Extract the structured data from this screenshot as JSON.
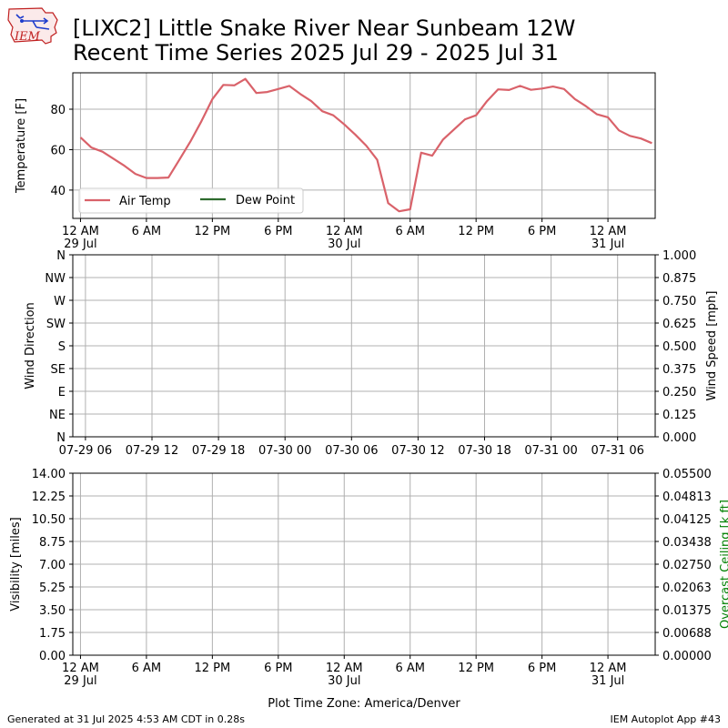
{
  "title_line1": "[LIXC2] Little Snake River Near Sunbeam 12W",
  "title_line2": "Recent Time Series 2025 Jul 29 - 2025 Jul 31",
  "logo_text": "IEM",
  "footer_left": "Generated at 31 Jul 2025 4:53 AM CDT in 0.28s",
  "footer_right": "IEM Autoplot App #43",
  "colors": {
    "air_temp": "#d9626a",
    "dew_point": "#2e6b2e",
    "grid": "#b0b0b0",
    "ceiling_label": "#008000"
  },
  "chart_data": [
    {
      "type": "line",
      "ylabel": "Temperature [F]",
      "xlim": [
        "2025-07-29 00:00",
        "2025-07-31 03:00"
      ],
      "ylim": [
        26,
        98
      ],
      "yticks": [
        40,
        60,
        80
      ],
      "xticks": [
        {
          "t": "2025-07-29 00:00",
          "label": "12 AM",
          "sub": "29 Jul"
        },
        {
          "t": "2025-07-29 06:00",
          "label": "6 AM",
          "sub": ""
        },
        {
          "t": "2025-07-29 12:00",
          "label": "12 PM",
          "sub": ""
        },
        {
          "t": "2025-07-29 18:00",
          "label": "6 PM",
          "sub": ""
        },
        {
          "t": "2025-07-30 00:00",
          "label": "12 AM",
          "sub": "30 Jul"
        },
        {
          "t": "2025-07-30 06:00",
          "label": "6 AM",
          "sub": ""
        },
        {
          "t": "2025-07-30 12:00",
          "label": "12 PM",
          "sub": ""
        },
        {
          "t": "2025-07-30 18:00",
          "label": "6 PM",
          "sub": ""
        },
        {
          "t": "2025-07-31 00:00",
          "label": "12 AM",
          "sub": "31 Jul"
        }
      ],
      "legend": [
        "Air Temp",
        "Dew Point"
      ],
      "legend_position": "lower-left",
      "grid": true,
      "series": [
        {
          "name": "Air Temp",
          "color": "#d9626a",
          "points": [
            [
              "2025-07-29 00:00",
              66
            ],
            [
              "2025-07-29 01:00",
              61
            ],
            [
              "2025-07-29 02:00",
              59
            ],
            [
              "2025-07-29 03:00",
              55.5
            ],
            [
              "2025-07-29 04:00",
              52
            ],
            [
              "2025-07-29 05:00",
              48
            ],
            [
              "2025-07-29 06:00",
              46
            ],
            [
              "2025-07-29 07:00",
              46
            ],
            [
              "2025-07-29 08:00",
              46.2
            ],
            [
              "2025-07-29 09:00",
              55
            ],
            [
              "2025-07-29 10:00",
              64
            ],
            [
              "2025-07-29 11:00",
              74
            ],
            [
              "2025-07-29 12:00",
              85
            ],
            [
              "2025-07-29 13:00",
              92
            ],
            [
              "2025-07-29 14:00",
              91.8
            ],
            [
              "2025-07-29 15:00",
              95
            ],
            [
              "2025-07-29 16:00",
              88
            ],
            [
              "2025-07-29 17:00",
              88.5
            ],
            [
              "2025-07-29 18:00",
              90
            ],
            [
              "2025-07-29 19:00",
              91.5
            ],
            [
              "2025-07-29 20:00",
              87.5
            ],
            [
              "2025-07-29 21:00",
              84
            ],
            [
              "2025-07-29 22:00",
              79
            ],
            [
              "2025-07-29 23:00",
              77
            ],
            [
              "2025-07-30 00:00",
              72.5
            ],
            [
              "2025-07-30 01:00",
              67.5
            ],
            [
              "2025-07-30 02:00",
              62
            ],
            [
              "2025-07-30 03:00",
              55
            ],
            [
              "2025-07-30 04:00",
              33.5
            ],
            [
              "2025-07-30 05:00",
              29.5
            ],
            [
              "2025-07-30 06:00",
              30.5
            ],
            [
              "2025-07-30 07:00",
              58.5
            ],
            [
              "2025-07-30 08:00",
              57
            ],
            [
              "2025-07-30 09:00",
              65
            ],
            [
              "2025-07-30 10:00",
              70
            ],
            [
              "2025-07-30 11:00",
              75
            ],
            [
              "2025-07-30 12:00",
              77
            ],
            [
              "2025-07-30 13:00",
              84
            ],
            [
              "2025-07-30 14:00",
              89.8
            ],
            [
              "2025-07-30 15:00",
              89.5
            ],
            [
              "2025-07-30 16:00",
              91.5
            ],
            [
              "2025-07-30 17:00",
              89.6
            ],
            [
              "2025-07-30 18:00",
              90.2
            ],
            [
              "2025-07-30 19:00",
              91.2
            ],
            [
              "2025-07-30 20:00",
              90
            ],
            [
              "2025-07-30 21:00",
              85
            ],
            [
              "2025-07-30 22:00",
              81.5
            ],
            [
              "2025-07-30 23:00",
              77.5
            ],
            [
              "2025-07-31 00:00",
              76
            ],
            [
              "2025-07-31 01:00",
              69.5
            ],
            [
              "2025-07-31 02:00",
              66.8
            ],
            [
              "2025-07-31 03:00",
              65.5
            ],
            [
              "2025-07-31 04:00",
              63.2
            ]
          ]
        },
        {
          "name": "Dew Point",
          "color": "#2e6b2e",
          "points": []
        }
      ]
    },
    {
      "type": "line",
      "ylabel": "Wind Direction",
      "ylabel_right": "Wind Speed [mph]",
      "yticks_left": [
        "N",
        "NE",
        "E",
        "SE",
        "S",
        "SW",
        "W",
        "NW",
        "N"
      ],
      "yticks_right": [
        "0.000",
        "0.125",
        "0.250",
        "0.375",
        "0.500",
        "0.625",
        "0.750",
        "0.875",
        "1.000"
      ],
      "ylim_right": [
        0,
        1
      ],
      "xticks": [
        "07-29 06",
        "07-29 12",
        "07-29 18",
        "07-30 00",
        "07-30 06",
        "07-30 12",
        "07-30 18",
        "07-31 00",
        "07-31 06"
      ],
      "grid": true,
      "series": []
    },
    {
      "type": "line",
      "ylabel": "Visibility [miles]",
      "ylabel_right": "Overcast Ceiling [k ft]",
      "yticks_left": [
        "0.00",
        "1.75",
        "3.50",
        "5.25",
        "7.00",
        "8.75",
        "10.50",
        "12.25",
        "14.00"
      ],
      "ylim": [
        0,
        14
      ],
      "yticks_right": [
        "0.00000",
        "0.00688",
        "0.01375",
        "0.02063",
        "0.02750",
        "0.03438",
        "0.04125",
        "0.04813",
        "0.05500"
      ],
      "ylim_right": [
        0,
        0.055
      ],
      "xticks": [
        {
          "label": "12 AM",
          "sub": "29 Jul"
        },
        {
          "label": "6 AM",
          "sub": ""
        },
        {
          "label": "12 PM",
          "sub": ""
        },
        {
          "label": "6 PM",
          "sub": ""
        },
        {
          "label": "12 AM",
          "sub": "30 Jul"
        },
        {
          "label": "6 AM",
          "sub": ""
        },
        {
          "label": "12 PM",
          "sub": ""
        },
        {
          "label": "6 PM",
          "sub": ""
        },
        {
          "label": "12 AM",
          "sub": "31 Jul"
        }
      ],
      "xlabel": "Plot Time Zone: America/Denver",
      "grid": true,
      "series": []
    }
  ]
}
